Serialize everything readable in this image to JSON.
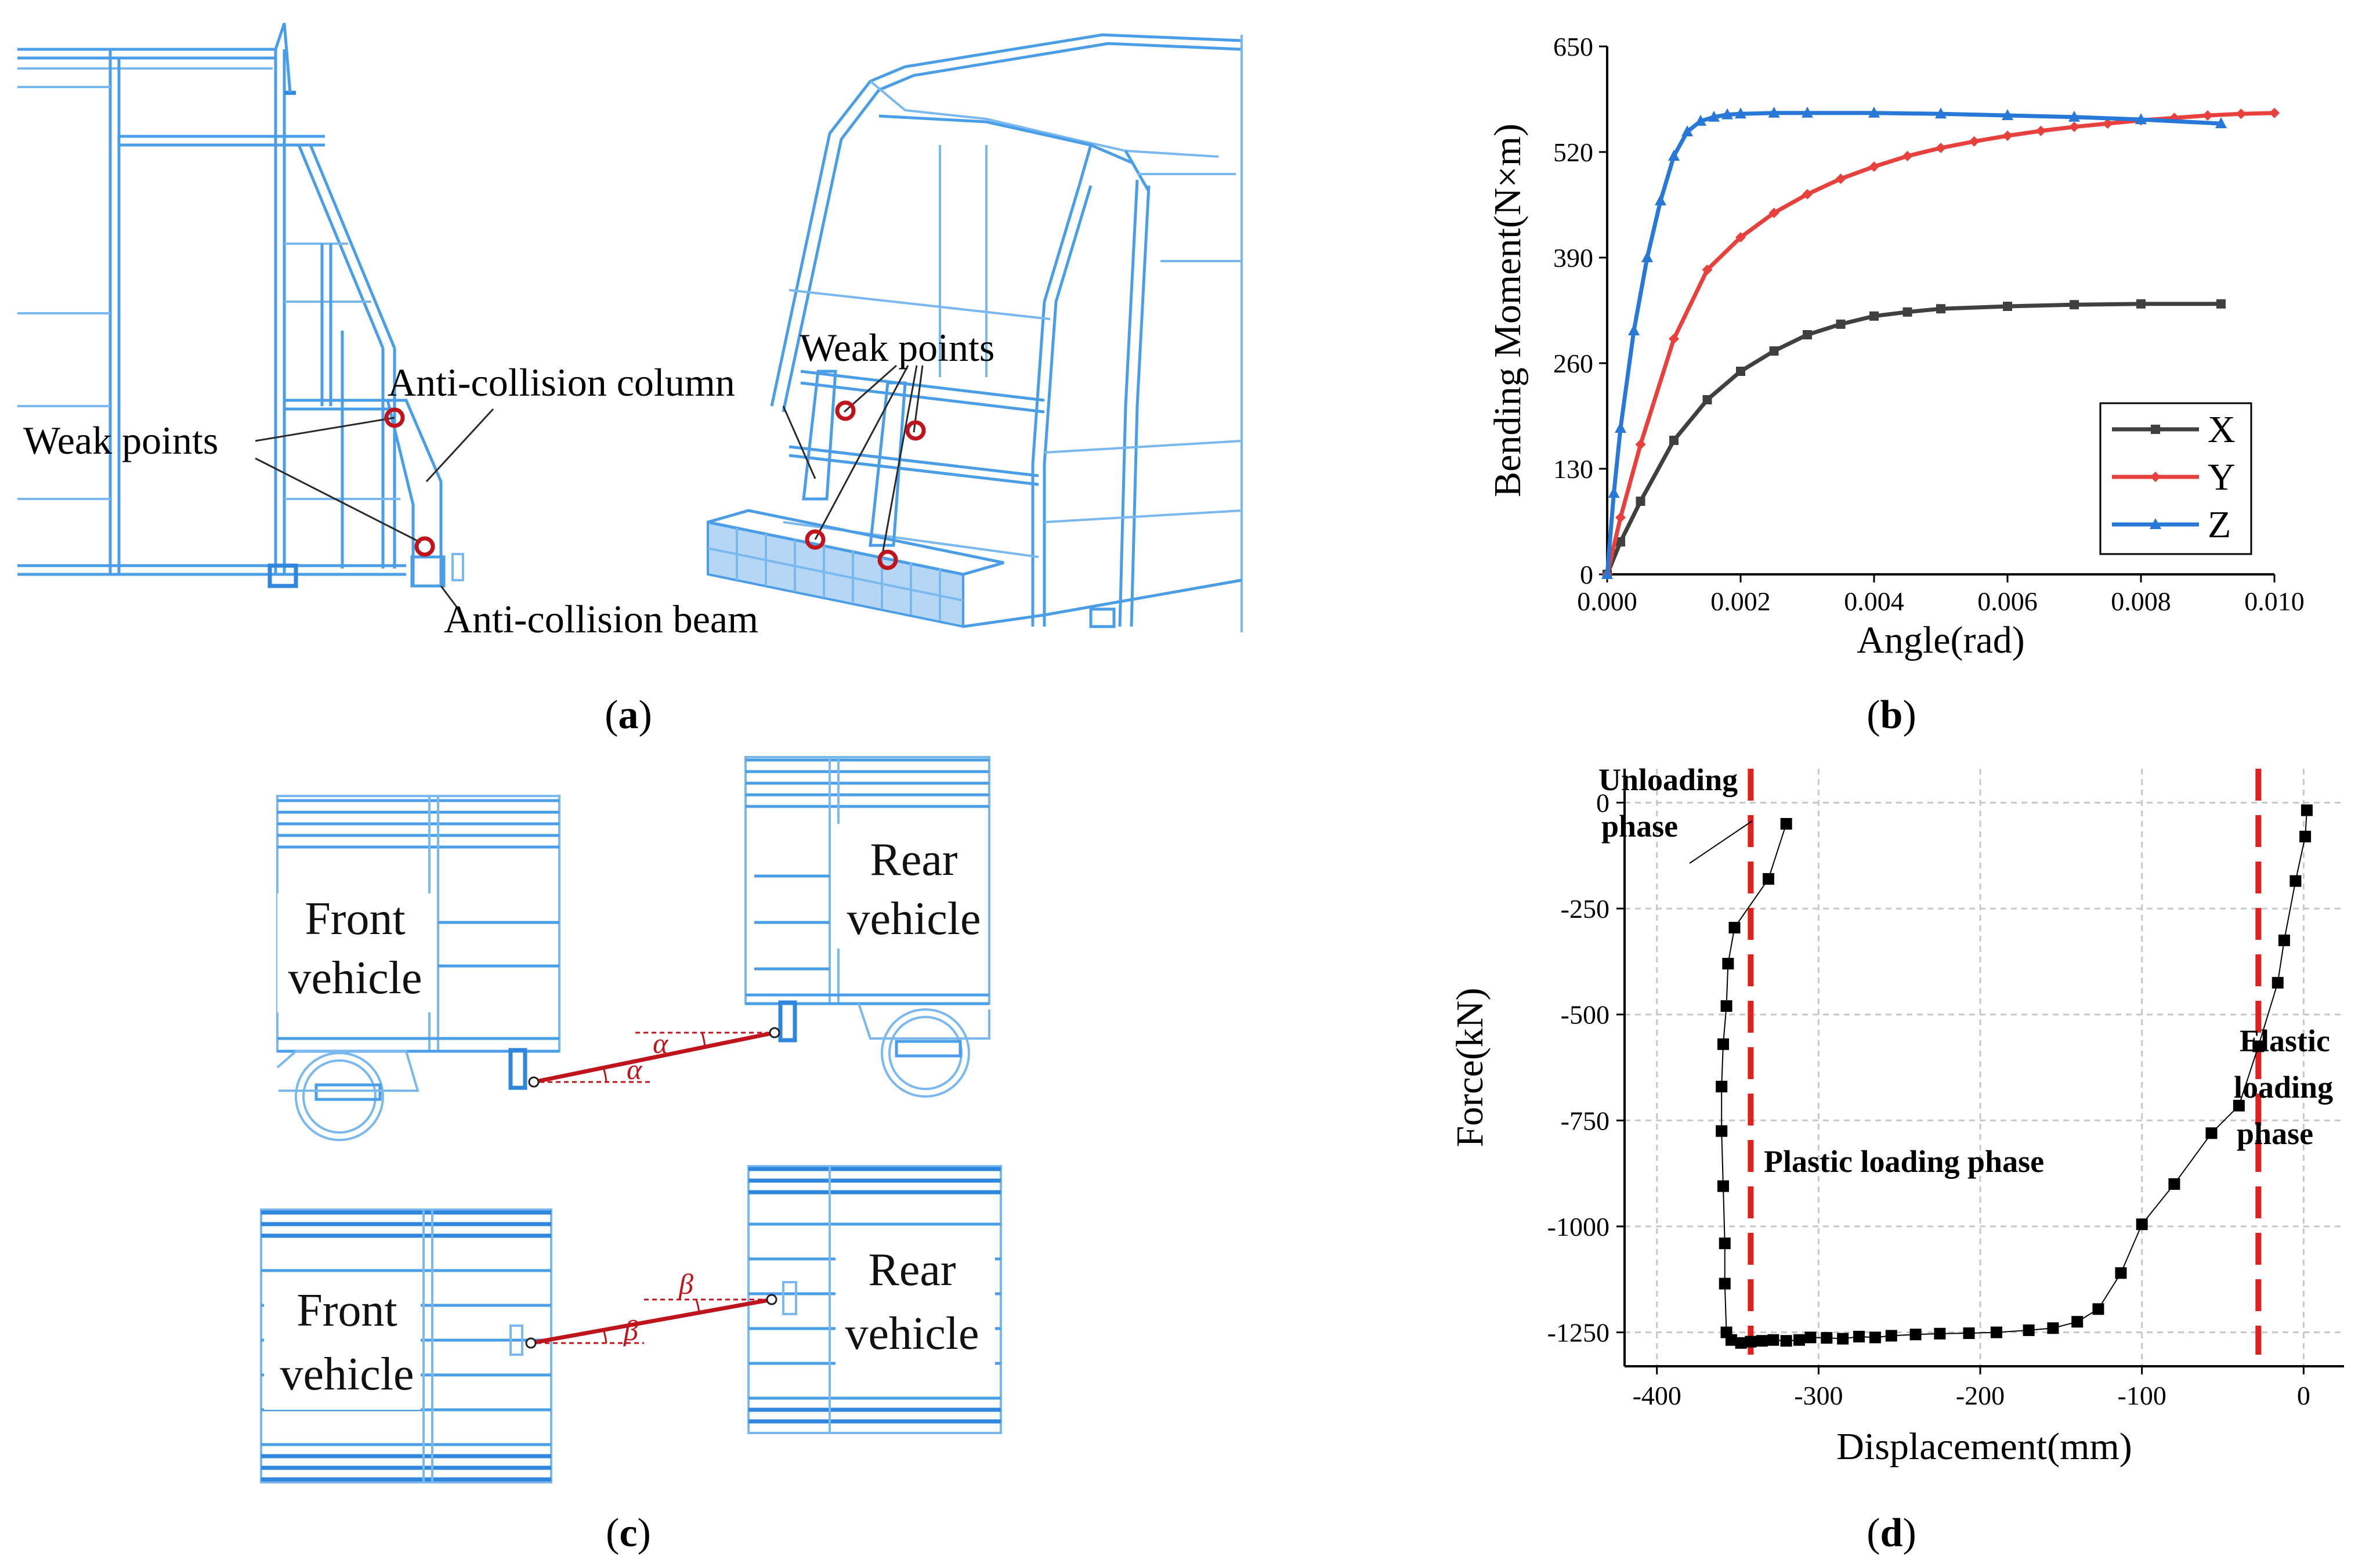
{
  "panels": {
    "a": "(a)",
    "b": "(b)",
    "c": "(c)",
    "d": "(d)"
  },
  "panel_a": {
    "weak_points_left": "Weak points",
    "anti_collision_column": "Anti-collision column",
    "weak_points_right": "Weak points",
    "anti_collision_beam": "Anti-collision beam"
  },
  "panel_c": {
    "front_vehicle_top_1": "Front",
    "front_vehicle_top_2": "vehicle",
    "rear_vehicle_top_1": "Rear",
    "rear_vehicle_top_2": "vehicle",
    "front_vehicle_bot_1": "Front",
    "front_vehicle_bot_2": "vehicle",
    "rear_vehicle_bot_1": "Rear",
    "rear_vehicle_bot_2": "vehicle",
    "alpha": "α",
    "beta": "β"
  },
  "chart_data": [
    {
      "type": "line",
      "xlabel": "Angle(rad)",
      "ylabel": "Bending Moment(N×m)",
      "xlim": [
        0,
        0.01
      ],
      "ylim": [
        0,
        650
      ],
      "xticks": [
        "0.000",
        "0.002",
        "0.004",
        "0.006",
        "0.008",
        "0.010"
      ],
      "yticks": [
        "0",
        "130",
        "260",
        "390",
        "520",
        "650"
      ],
      "legend_position": "bottom-right",
      "colors": {
        "X": "#404040",
        "Y": "#e8403c",
        "Z": "#2878d8"
      },
      "series": [
        {
          "name": "X",
          "marker": "square",
          "x": [
            0,
            0.0002,
            0.0005,
            0.001,
            0.0015,
            0.002,
            0.0025,
            0.003,
            0.0035,
            0.004,
            0.0045,
            0.005,
            0.006,
            0.007,
            0.008,
            0.0092
          ],
          "y": [
            0,
            40,
            90,
            165,
            215,
            250,
            275,
            295,
            308,
            318,
            323,
            327,
            330,
            332,
            333,
            333
          ]
        },
        {
          "name": "Y",
          "marker": "diamond",
          "x": [
            0,
            0.0002,
            0.0005,
            0.001,
            0.0015,
            0.002,
            0.0025,
            0.003,
            0.0035,
            0.004,
            0.0045,
            0.005,
            0.0055,
            0.006,
            0.0065,
            0.007,
            0.0075,
            0.008,
            0.0085,
            0.009,
            0.0095,
            0.01
          ],
          "y": [
            0,
            70,
            160,
            290,
            375,
            415,
            445,
            468,
            487,
            502,
            515,
            525,
            533,
            540,
            546,
            551,
            555,
            559,
            562,
            565,
            567,
            568
          ]
        },
        {
          "name": "Z",
          "marker": "triangle",
          "x": [
            0,
            0.0001,
            0.0002,
            0.0004,
            0.0006,
            0.0008,
            0.001,
            0.0012,
            0.0014,
            0.0016,
            0.0018,
            0.002,
            0.0025,
            0.003,
            0.004,
            0.005,
            0.006,
            0.007,
            0.008,
            0.0092
          ],
          "y": [
            0,
            100,
            180,
            300,
            390,
            460,
            515,
            545,
            558,
            563,
            566,
            567,
            568,
            568,
            568,
            567,
            565,
            563,
            560,
            555
          ]
        }
      ]
    },
    {
      "type": "scatter",
      "xlabel": "Displacement(mm)",
      "ylabel": "Force(kN)",
      "xlim": [
        -420,
        25
      ],
      "ylim": [
        -1330,
        80
      ],
      "xticks": [
        "-400",
        "-300",
        "-200",
        "-100",
        "0"
      ],
      "yticks": [
        "0",
        "-250",
        "-500",
        "-750",
        "-1000",
        "-1250"
      ],
      "grid": true,
      "annotations": {
        "unloading_1": "Unloading",
        "unloading_2": "phase",
        "plastic": "Plastic loading phase",
        "elastic_1": "Elastic",
        "elastic_2": "loading",
        "elastic_3": "phase"
      },
      "phase_lines_x": [
        -342,
        -28
      ],
      "colors": {
        "points": "#000000",
        "phase_lines": "#e0201c"
      },
      "points": {
        "x": [
          2,
          1,
          -5,
          -12,
          -16,
          -28,
          -40,
          -57,
          -80,
          -100,
          -113,
          -127,
          -140,
          -155,
          -170,
          -190,
          -207,
          -225,
          -240,
          -255,
          -265,
          -275,
          -285,
          -295,
          -305,
          -312,
          -320,
          -328,
          -335,
          -342,
          -348,
          -354,
          -357,
          -358,
          -358,
          -359,
          -360,
          -360,
          -359,
          -357,
          -356,
          -352,
          -331,
          -320
        ],
        "y": [
          -18,
          -80,
          -185,
          -325,
          -425,
          -575,
          -715,
          -780,
          -900,
          -995,
          -1110,
          -1195,
          -1225,
          -1240,
          -1245,
          -1250,
          -1252,
          -1253,
          -1255,
          -1258,
          -1262,
          -1260,
          -1265,
          -1263,
          -1262,
          -1268,
          -1270,
          -1268,
          -1270,
          -1272,
          -1275,
          -1268,
          -1250,
          -1135,
          -1040,
          -905,
          -775,
          -670,
          -570,
          -480,
          -380,
          -295,
          -180,
          -50
        ]
      }
    }
  ]
}
